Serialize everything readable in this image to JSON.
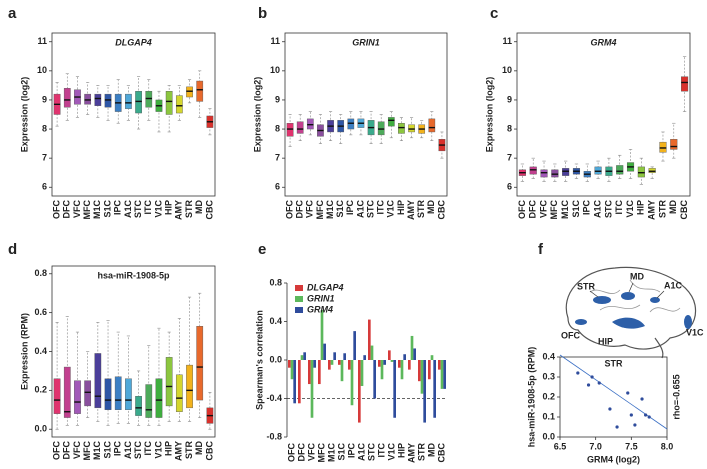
{
  "chart_data": [
    {
      "type": "box",
      "panel": "a",
      "title": "DLGAP4",
      "title_italic": true,
      "ylabel": "Expression (log2)",
      "categories": [
        "OFC",
        "DFC",
        "VFC",
        "MFC",
        "M1C",
        "S1C",
        "IPC",
        "A1C",
        "STC",
        "ITC",
        "V1C",
        "HIP",
        "AMY",
        "STR",
        "MD",
        "CBC"
      ],
      "colors": [
        "#e0336e",
        "#c2408f",
        "#a259b8",
        "#8a4f9e",
        "#4b3f9a",
        "#2e56a6",
        "#3b7fc4",
        "#4fa8d8",
        "#3aaa8c",
        "#4daa5a",
        "#3fae3f",
        "#8cc63f",
        "#d4d62e",
        "#f2b21c",
        "#e8692c",
        "#d9312c"
      ],
      "whislo": [
        8.1,
        8.3,
        8.4,
        8.5,
        8.4,
        8.3,
        8.2,
        8.3,
        8.0,
        8.3,
        7.9,
        7.9,
        8.3,
        8.9,
        8.4,
        7.8
      ],
      "q1": [
        8.5,
        8.75,
        8.85,
        8.85,
        8.8,
        8.75,
        8.6,
        8.7,
        8.55,
        8.75,
        8.6,
        8.5,
        8.55,
        9.1,
        8.95,
        8.05
      ],
      "med": [
        8.85,
        9.0,
        9.1,
        9.0,
        9.05,
        9.0,
        8.9,
        8.9,
        8.95,
        9.05,
        8.8,
        8.95,
        8.8,
        9.3,
        9.35,
        8.25
      ],
      "q3": [
        9.2,
        9.4,
        9.35,
        9.2,
        9.2,
        9.2,
        9.2,
        9.2,
        9.3,
        9.3,
        9.0,
        9.3,
        9.15,
        9.45,
        9.65,
        8.45
      ],
      "whishi": [
        9.6,
        9.9,
        9.8,
        9.6,
        9.5,
        9.5,
        9.7,
        9.5,
        9.8,
        9.7,
        9.3,
        9.5,
        9.5,
        9.7,
        10.0,
        8.7
      ],
      "ylim": [
        5.7,
        11.3
      ],
      "yticks": [
        6,
        7,
        8,
        9,
        10,
        11
      ]
    },
    {
      "type": "box",
      "panel": "b",
      "title": "GRIN1",
      "title_italic": true,
      "ylabel": "Expression (log2)",
      "categories": [
        "OFC",
        "DFC",
        "VFC",
        "MFC",
        "M1C",
        "S1C",
        "IPC",
        "A1C",
        "STC",
        "ITC",
        "V1C",
        "HIP",
        "AMY",
        "STR",
        "MD",
        "CBC"
      ],
      "colors": [
        "#e0336e",
        "#c2408f",
        "#a259b8",
        "#8a4f9e",
        "#4b3f9a",
        "#2e56a6",
        "#3b7fc4",
        "#4fa8d8",
        "#3aaa8c",
        "#4daa5a",
        "#3fae3f",
        "#8cc63f",
        "#d4d62e",
        "#f2b21c",
        "#e8692c",
        "#d9312c"
      ],
      "whislo": [
        7.4,
        7.6,
        7.8,
        7.5,
        7.6,
        7.5,
        7.8,
        7.8,
        7.5,
        7.5,
        7.7,
        7.6,
        7.7,
        7.7,
        7.6,
        7.0
      ],
      "q1": [
        7.75,
        7.85,
        8.0,
        7.75,
        7.9,
        7.9,
        8.0,
        8.05,
        7.8,
        7.8,
        8.1,
        7.85,
        7.9,
        7.85,
        7.9,
        7.25
      ],
      "med": [
        8.0,
        8.0,
        8.15,
        7.95,
        8.1,
        8.1,
        8.2,
        8.2,
        8.05,
        8.0,
        8.3,
        8.05,
        8.0,
        8.0,
        8.05,
        7.45
      ],
      "q3": [
        8.2,
        8.25,
        8.35,
        8.15,
        8.3,
        8.3,
        8.35,
        8.35,
        8.3,
        8.25,
        8.4,
        8.2,
        8.15,
        8.15,
        8.35,
        7.65
      ],
      "whishi": [
        8.5,
        8.5,
        8.6,
        8.5,
        8.6,
        8.5,
        8.6,
        8.6,
        8.6,
        8.5,
        8.6,
        8.4,
        8.4,
        8.3,
        8.6,
        7.9
      ],
      "ylim": [
        5.7,
        11.3
      ],
      "yticks": [
        6,
        7,
        8,
        9,
        10,
        11
      ]
    },
    {
      "type": "box",
      "panel": "c",
      "title": "GRM4",
      "title_italic": true,
      "ylabel": "Expression (log2)",
      "categories": [
        "OFC",
        "DFC",
        "VFC",
        "MFC",
        "M1C",
        "S1C",
        "IPC",
        "A1C",
        "STC",
        "ITC",
        "V1C",
        "HIP",
        "AMY",
        "STR",
        "MD",
        "CBC"
      ],
      "colors": [
        "#e0336e",
        "#c2408f",
        "#a259b8",
        "#8a4f9e",
        "#4b3f9a",
        "#2e56a6",
        "#3b7fc4",
        "#4fa8d8",
        "#3aaa8c",
        "#4daa5a",
        "#3fae3f",
        "#8cc63f",
        "#d4d62e",
        "#f2b21c",
        "#e8692c",
        "#d9312c"
      ],
      "whislo": [
        6.2,
        6.3,
        6.2,
        6.2,
        6.2,
        6.3,
        6.2,
        6.3,
        6.2,
        6.3,
        6.3,
        6.1,
        6.3,
        6.9,
        7.0,
        8.6
      ],
      "q1": [
        6.4,
        6.45,
        6.35,
        6.35,
        6.4,
        6.45,
        6.35,
        6.45,
        6.4,
        6.45,
        6.55,
        6.35,
        6.5,
        7.2,
        7.3,
        9.3
      ],
      "med": [
        6.5,
        6.6,
        6.5,
        6.45,
        6.55,
        6.55,
        6.45,
        6.55,
        6.55,
        6.55,
        6.7,
        6.5,
        6.55,
        7.35,
        7.4,
        9.6
      ],
      "q3": [
        6.6,
        6.7,
        6.6,
        6.6,
        6.65,
        6.65,
        6.55,
        6.7,
        6.7,
        6.75,
        6.85,
        6.7,
        6.65,
        7.55,
        7.65,
        9.8
      ],
      "whishi": [
        6.8,
        7.0,
        6.9,
        6.8,
        6.9,
        6.8,
        6.8,
        6.9,
        7.0,
        7.1,
        7.3,
        7.0,
        6.7,
        7.9,
        8.2,
        10.5
      ],
      "ylim": [
        5.7,
        11.3
      ],
      "yticks": [
        6,
        7,
        8,
        9,
        10,
        11
      ]
    },
    {
      "type": "box",
      "panel": "d",
      "title": "hsa-miR-1908-5p",
      "title_italic": false,
      "ylabel": "Expression (RPM)",
      "categories": [
        "OFC",
        "DFC",
        "VFC",
        "MFC",
        "M1C",
        "S1C",
        "IPC",
        "A1C",
        "STC",
        "ITC",
        "V1C",
        "HIP",
        "AMY",
        "STR",
        "MD",
        "CBC"
      ],
      "colors": [
        "#e0336e",
        "#c2408f",
        "#a259b8",
        "#8a4f9e",
        "#4b3f9a",
        "#2e56a6",
        "#3b7fc4",
        "#4fa8d8",
        "#3aaa8c",
        "#4daa5a",
        "#3fae3f",
        "#8cc63f",
        "#d4d62e",
        "#f2b21c",
        "#e8692c",
        "#d9312c"
      ],
      "whislo": [
        0.0,
        0.02,
        0.02,
        0.06,
        0.04,
        0.02,
        0.03,
        0.03,
        0.02,
        0.02,
        0.02,
        0.04,
        0.04,
        0.04,
        0.06,
        0.0
      ],
      "q1": [
        0.08,
        0.06,
        0.08,
        0.12,
        0.11,
        0.1,
        0.1,
        0.1,
        0.07,
        0.06,
        0.06,
        0.12,
        0.09,
        0.11,
        0.15,
        0.03
      ],
      "med": [
        0.15,
        0.09,
        0.14,
        0.19,
        0.17,
        0.15,
        0.15,
        0.15,
        0.11,
        0.1,
        0.15,
        0.22,
        0.16,
        0.2,
        0.32,
        0.07
      ],
      "q3": [
        0.26,
        0.32,
        0.25,
        0.25,
        0.39,
        0.26,
        0.27,
        0.26,
        0.17,
        0.23,
        0.26,
        0.37,
        0.28,
        0.33,
        0.53,
        0.11
      ],
      "whishi": [
        0.55,
        0.58,
        0.5,
        0.4,
        0.55,
        0.56,
        0.5,
        0.48,
        0.3,
        0.43,
        0.52,
        0.5,
        0.57,
        0.68,
        0.7,
        0.19
      ],
      "ylim": [
        -0.04,
        0.84
      ],
      "yticks": [
        {
          "value": 0,
          "label": "0.0"
        },
        {
          "value": 0.2,
          "label": "0.2"
        },
        {
          "value": 0.4,
          "label": "0.4"
        },
        {
          "value": 0.6,
          "label": "0.6"
        },
        {
          "value": 0.8,
          "label": "0.8"
        }
      ]
    },
    {
      "type": "bar",
      "panel": "e",
      "ylabel": "Spearman's correlation",
      "categories": [
        "OFC",
        "DFC",
        "VFC",
        "MFC",
        "M1C",
        "S1C",
        "IPC",
        "A1C",
        "STC",
        "ITC",
        "V1C",
        "HIP",
        "AMY",
        "STR",
        "MD",
        "CBC"
      ],
      "series": [
        {
          "name": "DLGAP4",
          "color": "#d63a3a",
          "values": [
            -0.08,
            -0.45,
            -0.25,
            -0.25,
            -0.1,
            -0.05,
            -0.1,
            -0.65,
            0.42,
            -0.07,
            0.1,
            -0.08,
            -0.1,
            -0.22,
            -0.2,
            -0.1
          ]
        },
        {
          "name": "GRIN1",
          "color": "#5cb85c",
          "values": [
            -0.2,
            0.05,
            -0.6,
            0.52,
            -0.05,
            -0.22,
            -0.47,
            -0.27,
            0.15,
            -0.2,
            -0.02,
            -0.2,
            0.25,
            -0.35,
            0.05,
            -0.3
          ]
        },
        {
          "name": "GRM4",
          "color": "#2f4c9c",
          "values": [
            -0.45,
            0.08,
            -0.08,
            0.17,
            0.08,
            0.07,
            0.3,
            0.05,
            -0.4,
            -0.05,
            -0.6,
            0.06,
            0.12,
            -0.65,
            -0.6,
            -0.3
          ]
        }
      ],
      "reference_line": -0.4,
      "legend": "upper left",
      "ylim": [
        -0.8,
        0.8
      ],
      "yticks": [
        {
          "value": -0.8,
          "label": "-0.8"
        },
        {
          "value": -0.4,
          "label": "-0.4"
        },
        {
          "value": 0,
          "label": "0.0"
        },
        {
          "value": 0.4,
          "label": "0.4"
        },
        {
          "value": 0.8,
          "label": "0.8"
        }
      ]
    },
    {
      "type": "scatter",
      "panel": "f",
      "title": "STR",
      "annotation": "rho=-0.655",
      "xlabel": "GRM4 (log2)",
      "ylabel": "hsa-miR-1908-5p (RPM)",
      "color": "#2f4c9c",
      "x": [
        6.75,
        6.9,
        6.95,
        7.05,
        7.2,
        7.3,
        7.45,
        7.5,
        7.55,
        7.65,
        7.7,
        7.75
      ],
      "y": [
        0.32,
        0.26,
        0.3,
        0.27,
        0.14,
        0.05,
        0.22,
        0.11,
        0.06,
        0.19,
        0.11,
        0.1
      ],
      "fit_line": {
        "x": [
          6.5,
          8.0
        ],
        "y": [
          0.41,
          0.04
        ]
      },
      "xlim": [
        6.5,
        8.0
      ],
      "xticks": [
        {
          "value": 6.5,
          "label": "6.5"
        },
        {
          "value": 7,
          "label": "7.0"
        },
        {
          "value": 7.5,
          "label": "7.5"
        },
        {
          "value": 8,
          "label": "8.0"
        }
      ],
      "ylim": [
        0,
        0.4
      ],
      "yticks": [
        {
          "value": 0,
          "label": "0.0"
        },
        {
          "value": 0.1,
          "label": "0.1"
        },
        {
          "value": 0.2,
          "label": "0.2"
        },
        {
          "value": 0.3,
          "label": "0.3"
        },
        {
          "value": 0.4,
          "label": "0.4"
        }
      ]
    }
  ],
  "brain_diagram": {
    "labels": [
      "STR",
      "MD",
      "A1C",
      "V1C",
      "OFC",
      "HIP"
    ]
  }
}
